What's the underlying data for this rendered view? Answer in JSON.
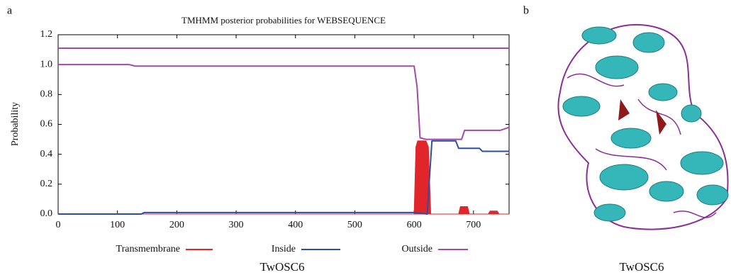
{
  "figure": {
    "panel_a_label": "a",
    "panel_b_label": "b",
    "caption_a": "TwOSC6",
    "caption_b": "TwOSC6"
  },
  "chart_data": {
    "type": "line",
    "title": "TMHMM posterior probabilities for WEBSEQUENCE",
    "y_label": "Probability",
    "xlim": [
      0,
      760
    ],
    "xticks": [
      0,
      100,
      200,
      300,
      400,
      500,
      600,
      700
    ],
    "ylim": [
      0,
      1.2
    ],
    "yticks": [
      {
        "value": 0,
        "label": "0.0"
      },
      0.2,
      0.4,
      0.6,
      0.8,
      {
        "value": 1,
        "label": "1.0"
      },
      1.2
    ],
    "grid": false,
    "reference_lines": [
      {
        "value": 1.11,
        "color": "#a24aa6"
      }
    ],
    "series": [
      {
        "name": "Transmembrane",
        "color": "#e0262b",
        "fill": true,
        "x": [
          0,
          600,
          603,
          606,
          620,
          624,
          628,
          675,
          678,
          690,
          693,
          725,
          728,
          740,
          743,
          760
        ],
        "values": [
          0,
          0,
          0.45,
          0.49,
          0.49,
          0.45,
          0,
          0,
          0.05,
          0.05,
          0,
          0,
          0.02,
          0.02,
          0,
          0
        ]
      },
      {
        "name": "Inside",
        "color": "#2b4fa3",
        "fill": false,
        "x": [
          0,
          140,
          145,
          600,
          622,
          626,
          630,
          670,
          675,
          710,
          715,
          760
        ],
        "values": [
          0,
          0,
          0.01,
          0.01,
          0,
          0.25,
          0.49,
          0.49,
          0.44,
          0.44,
          0.42,
          0.42
        ]
      },
      {
        "name": "Outside",
        "color": "#a24aa6",
        "fill": false,
        "x": [
          0,
          120,
          130,
          600,
          605,
          610,
          620,
          680,
          685,
          745,
          760
        ],
        "values": [
          1.0,
          1.0,
          0.99,
          0.99,
          0.85,
          0.51,
          0.5,
          0.5,
          0.56,
          0.56,
          0.58
        ]
      }
    ]
  }
}
